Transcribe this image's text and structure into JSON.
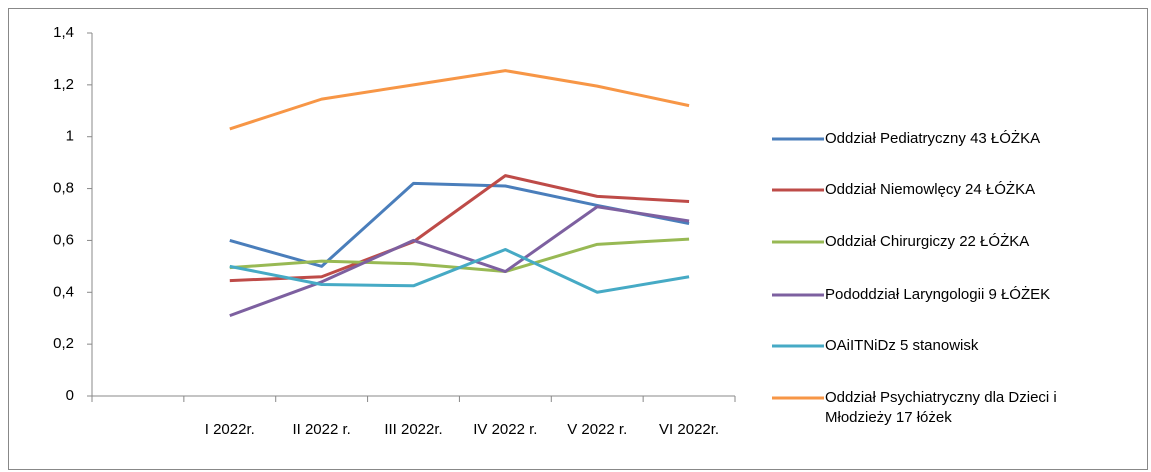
{
  "chart_data": {
    "type": "line",
    "categories": [
      null,
      "I 2022r.",
      "II 2022 r.",
      "III 2022r.",
      "IV 2022 r.",
      "V 2022 r.",
      "VI 2022r."
    ],
    "series": [
      {
        "name": "Oddział Pediatryczny 43 ŁÓŻKA",
        "color": "#4a7ebb",
        "values": [
          null,
          0.6,
          0.5,
          0.82,
          0.81,
          0.735,
          0.665
        ]
      },
      {
        "name": "Oddział Niemowlęcy 24 ŁÓŻKA",
        "color": "#be4b48",
        "values": [
          null,
          0.445,
          0.46,
          0.595,
          0.85,
          0.77,
          0.75
        ]
      },
      {
        "name": "Oddział Chirurgiczy 22 ŁÓŻKA",
        "color": "#98b954",
        "values": [
          null,
          0.495,
          0.52,
          0.51,
          0.48,
          0.585,
          0.605
        ]
      },
      {
        "name": "Pododdział Laryngologii 9 ŁÓŻEK",
        "color": "#7d60a0",
        "values": [
          null,
          0.31,
          0.44,
          0.6,
          0.48,
          0.73,
          0.675
        ]
      },
      {
        "name": "OAiITNiDz  5 stanowisk",
        "color": "#46aac5",
        "values": [
          null,
          0.5,
          0.43,
          0.425,
          0.565,
          0.4,
          0.46
        ]
      },
      {
        "name": "Oddział Psychiatryczny dla Dzieci i Młodzieży 17 łóżek",
        "color": "#f79646",
        "values": [
          null,
          1.03,
          1.145,
          1.2,
          1.255,
          1.195,
          1.12
        ]
      }
    ],
    "ylim": [
      0,
      1.4
    ],
    "yticks": [
      0,
      {
        "value": 0.2,
        "label": "0,2"
      },
      {
        "value": 0.4,
        "label": "0,4"
      },
      {
        "value": 0.6,
        "label": "0,6"
      },
      {
        "value": 0.8,
        "label": "0,8"
      },
      1,
      {
        "value": 1.2,
        "label": "1,2"
      },
      {
        "value": 1.4,
        "label": "1,4"
      }
    ],
    "grid": false,
    "legend": "right"
  }
}
